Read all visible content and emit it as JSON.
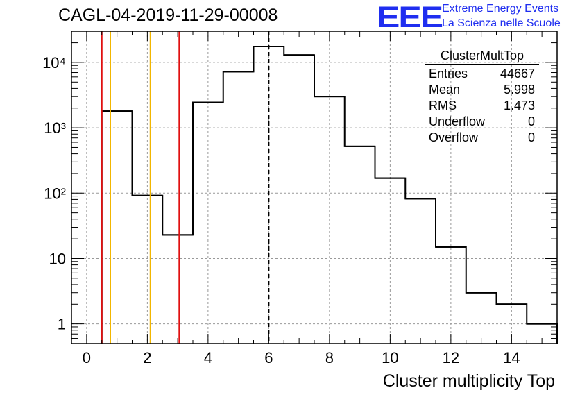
{
  "title": "CAGL-04-2019-11-29-00008",
  "logo": {
    "text": "EEE",
    "line1": "Extreme Energy Events",
    "line2": "La Scienza nelle Scuole",
    "color": "#1f2ef0"
  },
  "stats": {
    "name": "ClusterMultTop",
    "rows": [
      {
        "label": "Entries",
        "value": "44667"
      },
      {
        "label": "Mean",
        "value": "5.998"
      },
      {
        "label": "RMS",
        "value": "1.473"
      },
      {
        "label": "Underflow",
        "value": "0"
      },
      {
        "label": "Overflow",
        "value": "0"
      }
    ]
  },
  "chart_data": {
    "type": "histogram",
    "title": "CAGL-04-2019-11-29-00008",
    "xlabel": "Cluster multiplicity Top",
    "ylabel": "",
    "xlim": [
      -0.5,
      15.5
    ],
    "ylim": [
      0.5,
      30000
    ],
    "yscale": "log",
    "grid": true,
    "x_ticks": [
      0,
      2,
      4,
      6,
      8,
      10,
      12,
      14
    ],
    "y_ticks": [
      {
        "value": 1,
        "label": "1"
      },
      {
        "value": 10,
        "label": "10"
      },
      {
        "value": 100,
        "label": "10²"
      },
      {
        "value": 1000,
        "label": "10³"
      },
      {
        "value": 10000,
        "label": "10⁴"
      }
    ],
    "bins": [
      {
        "lo": 0.5,
        "hi": 1.5,
        "count": 1800
      },
      {
        "lo": 1.5,
        "hi": 2.5,
        "count": 92
      },
      {
        "lo": 2.5,
        "hi": 3.5,
        "count": 23
      },
      {
        "lo": 3.5,
        "hi": 4.5,
        "count": 2450
      },
      {
        "lo": 4.5,
        "hi": 5.5,
        "count": 7200
      },
      {
        "lo": 5.5,
        "hi": 6.5,
        "count": 17500
      },
      {
        "lo": 6.5,
        "hi": 7.5,
        "count": 13000
      },
      {
        "lo": 7.5,
        "hi": 8.5,
        "count": 3000
      },
      {
        "lo": 8.5,
        "hi": 9.5,
        "count": 520
      },
      {
        "lo": 9.5,
        "hi": 10.5,
        "count": 170
      },
      {
        "lo": 10.5,
        "hi": 11.5,
        "count": 82
      },
      {
        "lo": 11.5,
        "hi": 12.5,
        "count": 15
      },
      {
        "lo": 12.5,
        "hi": 13.5,
        "count": 3
      },
      {
        "lo": 13.5,
        "hi": 14.5,
        "count": 2
      },
      {
        "lo": 14.5,
        "hi": 15.5,
        "count": 1
      }
    ],
    "markers": [
      {
        "x": 0.5,
        "color": "#e01010",
        "style": "solid"
      },
      {
        "x": 0.78,
        "color": "#f2b600",
        "style": "solid"
      },
      {
        "x": 2.1,
        "color": "#f2b600",
        "style": "solid"
      },
      {
        "x": 3.05,
        "color": "#e01010",
        "style": "solid"
      },
      {
        "x": 6.0,
        "color": "#000000",
        "style": "dashed"
      }
    ]
  }
}
